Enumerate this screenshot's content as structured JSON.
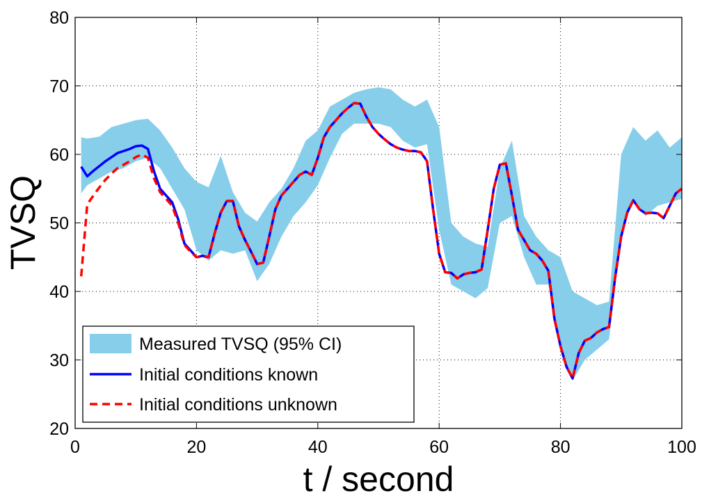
{
  "chart_data": {
    "type": "line",
    "title": "",
    "xlabel": "t / second",
    "ylabel": "TVSQ",
    "xlim": [
      0,
      100
    ],
    "ylim": [
      20,
      80
    ],
    "xticks": [
      0,
      20,
      40,
      60,
      80,
      100
    ],
    "yticks": [
      20,
      30,
      40,
      50,
      60,
      70,
      80
    ],
    "xtick_labels": [
      "0",
      "20",
      "40",
      "60",
      "80",
      "100"
    ],
    "ytick_labels": [
      "20",
      "30",
      "40",
      "50",
      "60",
      "70",
      "80"
    ],
    "grid": true,
    "legend": {
      "placement": "bottom-left"
    },
    "band": {
      "name": "Measured TVSQ (95% CI)",
      "color": "#87ceeb",
      "x": [
        1,
        2,
        4,
        6,
        8,
        10,
        12,
        14,
        16,
        18,
        20,
        22,
        24,
        26,
        28,
        30,
        32,
        34,
        36,
        38,
        40,
        42,
        44,
        46,
        48,
        50,
        52,
        54,
        56,
        58,
        60,
        62,
        64,
        66,
        68,
        70,
        72,
        74,
        76,
        78,
        80,
        82,
        84,
        86,
        88,
        90,
        92,
        94,
        96,
        98,
        100
      ],
      "upper": [
        62.5,
        62.3,
        62.6,
        64.0,
        64.5,
        65.0,
        65.2,
        63.5,
        61.0,
        58.0,
        56.0,
        55.2,
        59.8,
        54.5,
        51.5,
        50.2,
        53.0,
        55.0,
        58.0,
        62.0,
        63.5,
        67.0,
        68.0,
        69.0,
        69.5,
        69.8,
        69.5,
        68.0,
        67.0,
        68.0,
        64.0,
        50.0,
        48.0,
        47.0,
        46.5,
        58.0,
        62.0,
        51.0,
        48.0,
        46.0,
        45.0,
        40.0,
        39.0,
        38.0,
        38.5,
        60.0,
        64.0,
        62.0,
        63.5,
        61.0,
        62.5
      ],
      "lower": [
        54.3,
        55.5,
        56.5,
        57.5,
        58.0,
        59.0,
        59.5,
        58.0,
        55.0,
        52.0,
        46.0,
        44.5,
        46.0,
        45.5,
        46.0,
        41.5,
        44.0,
        48.0,
        51.0,
        53.0,
        55.5,
        59.5,
        63.0,
        64.5,
        64.5,
        64.5,
        64.0,
        62.0,
        61.0,
        61.5,
        49.0,
        41.0,
        40.0,
        39.0,
        40.5,
        50.0,
        51.0,
        45.0,
        41.0,
        41.0,
        32.0,
        27.0,
        30.0,
        31.5,
        33.0,
        48.0,
        53.5,
        51.0,
        52.5,
        53.0,
        53.5
      ]
    },
    "series": [
      {
        "name": "Initial conditions known",
        "color": "#0000ff",
        "style": "solid",
        "x": [
          1,
          2,
          3,
          4,
          5,
          6,
          7,
          8,
          9,
          10,
          11,
          12,
          13,
          14,
          15,
          16,
          17,
          18,
          19,
          20,
          21,
          22,
          23,
          24,
          25,
          26,
          27,
          28,
          29,
          30,
          31,
          32,
          33,
          34,
          35,
          36,
          37,
          38,
          39,
          40,
          41,
          42,
          43,
          44,
          45,
          46,
          47,
          48,
          49,
          50,
          51,
          52,
          53,
          54,
          55,
          56,
          57,
          58,
          59,
          60,
          61,
          62,
          63,
          64,
          65,
          66,
          67,
          68,
          69,
          70,
          71,
          72,
          73,
          74,
          75,
          76,
          77,
          78,
          79,
          80,
          81,
          82,
          83,
          84,
          85,
          86,
          87,
          88,
          89,
          90,
          91,
          92,
          93,
          94,
          95,
          96,
          97,
          98,
          99,
          100
        ],
        "values": [
          58.2,
          56.8,
          57.6,
          58.3,
          59.0,
          59.6,
          60.2,
          60.5,
          60.8,
          61.2,
          61.3,
          60.8,
          57.5,
          55.0,
          54.0,
          53.0,
          50.5,
          47.0,
          46.0,
          45.0,
          45.2,
          45.0,
          48.5,
          51.5,
          53.2,
          53.2,
          49.5,
          47.5,
          45.8,
          44.0,
          44.2,
          48.0,
          52.0,
          54.0,
          55.0,
          56.0,
          57.0,
          57.5,
          57.0,
          59.5,
          62.5,
          64.0,
          65.0,
          66.0,
          66.8,
          67.5,
          67.4,
          65.5,
          64.0,
          63.0,
          62.2,
          61.5,
          61.0,
          60.7,
          60.5,
          60.5,
          60.3,
          59.0,
          52.0,
          45.5,
          42.8,
          42.7,
          41.9,
          42.5,
          42.7,
          42.8,
          43.2,
          49.0,
          55.0,
          58.5,
          58.7,
          54.0,
          49.0,
          47.5,
          46.0,
          45.5,
          44.5,
          43.0,
          36.0,
          32.0,
          29.0,
          27.3,
          31.0,
          32.8,
          33.2,
          34.0,
          34.5,
          34.8,
          42.0,
          48.0,
          51.5,
          53.3,
          52.0,
          51.4,
          51.5,
          51.4,
          50.7,
          52.5,
          54.3,
          55.0
        ]
      },
      {
        "name": "Initial conditions unknown",
        "color": "#ff0000",
        "style": "dashed",
        "x": [
          1,
          1.5,
          2,
          3,
          4,
          5,
          6,
          7,
          8,
          9,
          10,
          11,
          12,
          13,
          14,
          15,
          16,
          17,
          18,
          19,
          20,
          21,
          22,
          23,
          24,
          25,
          26,
          27,
          28,
          29,
          30,
          31,
          32,
          33,
          34,
          35,
          36,
          37,
          38,
          39,
          40,
          41,
          42,
          43,
          44,
          45,
          46,
          47,
          48,
          49,
          50,
          51,
          52,
          53,
          54,
          55,
          56,
          57,
          58,
          59,
          60,
          61,
          62,
          63,
          64,
          65,
          66,
          67,
          68,
          69,
          70,
          71,
          72,
          73,
          74,
          75,
          76,
          77,
          78,
          79,
          80,
          81,
          82,
          83,
          84,
          85,
          86,
          87,
          88,
          89,
          90,
          91,
          92,
          93,
          94,
          95,
          96,
          97,
          98,
          99,
          100
        ],
        "values": [
          42.2,
          47.5,
          52.7,
          54.0,
          55.2,
          56.3,
          57.2,
          58.0,
          58.5,
          59.0,
          59.6,
          60.0,
          59.5,
          56.5,
          54.5,
          53.5,
          52.5,
          50.0,
          46.8,
          45.8,
          45.0,
          45.1,
          45.0,
          48.5,
          51.5,
          53.2,
          53.2,
          49.5,
          47.5,
          45.8,
          44.0,
          44.2,
          48.0,
          52.0,
          54.0,
          55.0,
          56.0,
          57.0,
          57.5,
          57.0,
          59.5,
          62.5,
          64.0,
          65.0,
          66.0,
          66.8,
          67.5,
          67.4,
          65.5,
          64.0,
          63.0,
          62.2,
          61.5,
          61.0,
          60.7,
          60.5,
          60.5,
          60.3,
          59.0,
          52.0,
          45.5,
          42.8,
          42.7,
          41.9,
          42.5,
          42.7,
          42.8,
          43.2,
          49.0,
          55.0,
          58.5,
          58.7,
          54.0,
          49.0,
          47.5,
          46.0,
          45.5,
          44.5,
          43.0,
          36.0,
          32.0,
          29.0,
          27.3,
          31.0,
          32.8,
          33.2,
          34.0,
          34.5,
          34.8,
          42.0,
          48.0,
          51.5,
          53.3,
          52.0,
          51.4,
          51.5,
          51.4,
          50.7,
          52.5,
          54.3,
          55.0
        ]
      }
    ]
  }
}
